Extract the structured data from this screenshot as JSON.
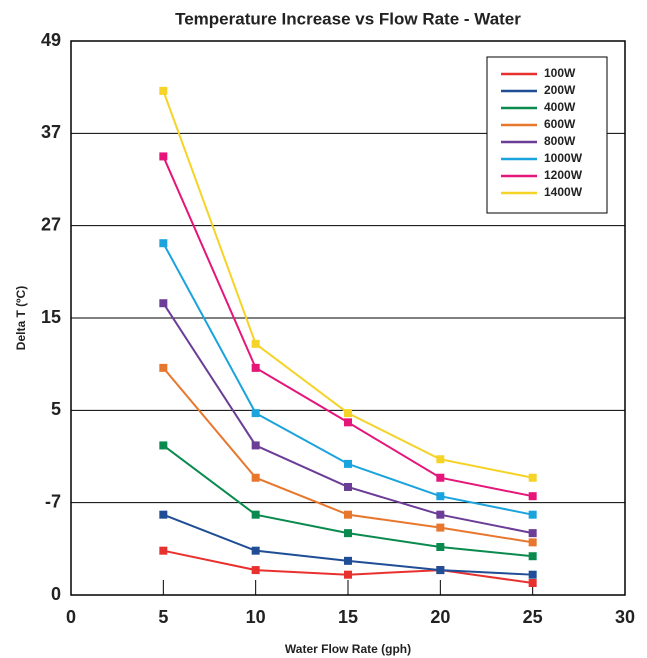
{
  "chart_data": {
    "type": "line",
    "title": "Temperature Increase vs Flow Rate - Water",
    "x_label": "Water Flow Rate (gph)",
    "y_label": "Delta T (ºC)",
    "x": [
      5,
      10,
      15,
      20,
      25
    ],
    "xlim": [
      0,
      30
    ],
    "xticks": [
      0,
      5,
      10,
      15,
      20,
      25,
      30
    ],
    "ylim": [
      0,
      6
    ],
    "yticks": [
      {
        "value": 0,
        "label": "0"
      },
      {
        "value": 1,
        "label": "-7"
      },
      {
        "value": 2,
        "label": "5"
      },
      {
        "value": 3,
        "label": "15"
      },
      {
        "value": 4,
        "label": "27"
      },
      {
        "value": 5,
        "label": "37"
      },
      {
        "value": 6,
        "label": "49"
      }
    ],
    "grid": true,
    "legend": "top-right",
    "series": [
      {
        "name": "100W",
        "color": "#e8312f",
        "values": [
          0.48,
          0.27,
          0.22,
          0.27,
          0.13
        ]
      },
      {
        "name": "200W",
        "color": "#1f4e96",
        "values": [
          0.87,
          0.48,
          0.37,
          0.27,
          0.22
        ]
      },
      {
        "name": "400W",
        "color": "#0a8a4e",
        "values": [
          1.62,
          0.87,
          0.67,
          0.52,
          0.42
        ]
      },
      {
        "name": "600W",
        "color": "#e8772e",
        "values": [
          2.46,
          1.27,
          0.87,
          0.73,
          0.57
        ]
      },
      {
        "name": "800W",
        "color": "#6b3d96",
        "values": [
          3.16,
          1.62,
          1.17,
          0.87,
          0.67
        ]
      },
      {
        "name": "1000W",
        "color": "#1aa3dc",
        "values": [
          3.81,
          1.97,
          1.42,
          1.07,
          0.87
        ]
      },
      {
        "name": "1200W",
        "color": "#e5157a",
        "values": [
          4.75,
          2.46,
          1.87,
          1.27,
          1.07
        ]
      },
      {
        "name": "1400W",
        "color": "#f5d327",
        "values": [
          5.46,
          2.72,
          1.97,
          1.47,
          1.27
        ]
      }
    ]
  }
}
